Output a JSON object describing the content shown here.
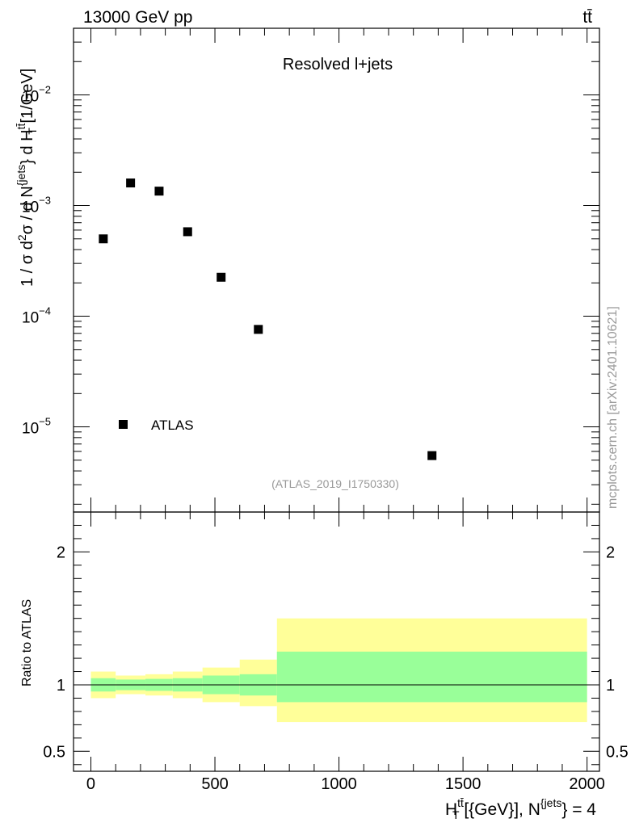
{
  "header": {
    "energy_label": "13000 GeV pp",
    "process_label": "tt̄"
  },
  "side_label": "mcplots.cern.ch [arXiv:2401.10621]",
  "chart_data": {
    "type": "scatter",
    "top_panel": {
      "title": "Resolved l+jets",
      "analysis_tag": "(ATLAS_2019_I1750330)",
      "ylabel": "1 / σ d²σ / d N^{jets} d H_T^{tt̄} [1/GeV]",
      "yscale": "log",
      "ylim": [
        1.7e-06,
        0.04
      ],
      "y_tick_labels": [
        {
          "value": 0.01,
          "mantissa": "10",
          "exponent": "−2"
        },
        {
          "value": 0.001,
          "mantissa": "10",
          "exponent": "−3"
        },
        {
          "value": 0.0001,
          "mantissa": "10",
          "exponent": "−4"
        },
        {
          "value": 1e-05,
          "mantissa": "10",
          "exponent": "−5"
        }
      ],
      "legend": [
        {
          "label": "ATLAS",
          "marker": "square"
        }
      ],
      "series": [
        {
          "name": "ATLAS",
          "points": [
            {
              "x": 50,
              "y": 0.0005
            },
            {
              "x": 160,
              "y": 0.0016
            },
            {
              "x": 275,
              "y": 0.00135
            },
            {
              "x": 390,
              "y": 0.00058
            },
            {
              "x": 525,
              "y": 0.000225
            },
            {
              "x": 675,
              "y": 7.6e-05
            },
            {
              "x": 1375,
              "y": 5.5e-06
            }
          ]
        }
      ]
    },
    "ratio_panel": {
      "ylabel": "Ratio to ATLAS",
      "ylim": [
        0.35,
        2.3
      ],
      "y_tick_labels": [
        {
          "value": 2,
          "label": "2"
        },
        {
          "value": 1,
          "label": "1"
        },
        {
          "value": 0.5,
          "label": "0.5"
        }
      ],
      "bins": [
        {
          "x0": 0,
          "x1": 100,
          "inner": [
            0.95,
            1.05
          ],
          "outer": [
            0.9,
            1.1
          ]
        },
        {
          "x0": 100,
          "x1": 220,
          "inner": [
            0.96,
            1.04
          ],
          "outer": [
            0.93,
            1.07
          ]
        },
        {
          "x0": 220,
          "x1": 330,
          "inner": [
            0.955,
            1.045
          ],
          "outer": [
            0.92,
            1.08
          ]
        },
        {
          "x0": 330,
          "x1": 450,
          "inner": [
            0.95,
            1.05
          ],
          "outer": [
            0.9,
            1.1
          ]
        },
        {
          "x0": 450,
          "x1": 600,
          "inner": [
            0.93,
            1.07
          ],
          "outer": [
            0.87,
            1.13
          ]
        },
        {
          "x0": 600,
          "x1": 750,
          "inner": [
            0.92,
            1.08
          ],
          "outer": [
            0.84,
            1.19
          ]
        },
        {
          "x0": 750,
          "x1": 2000,
          "inner": [
            0.87,
            1.25
          ],
          "outer": [
            0.72,
            1.5
          ]
        }
      ]
    },
    "x_axis": {
      "xlim": [
        -70,
        2050
      ],
      "ticks": [
        0,
        500,
        1000,
        1500,
        2000
      ],
      "tick_labels": [
        "0",
        "500",
        "1000",
        "1500",
        "2000"
      ],
      "label_main": "H",
      "label_sub": "T",
      "label_sup": "tt̄",
      "label_mid": " [{GeV}], N",
      "label_sup2": "{jets",
      "label_tail": "} = 4"
    },
    "colors": {
      "inner_band": "#99ff99",
      "outer_band": "#ffff99",
      "marker": "#000000"
    }
  }
}
